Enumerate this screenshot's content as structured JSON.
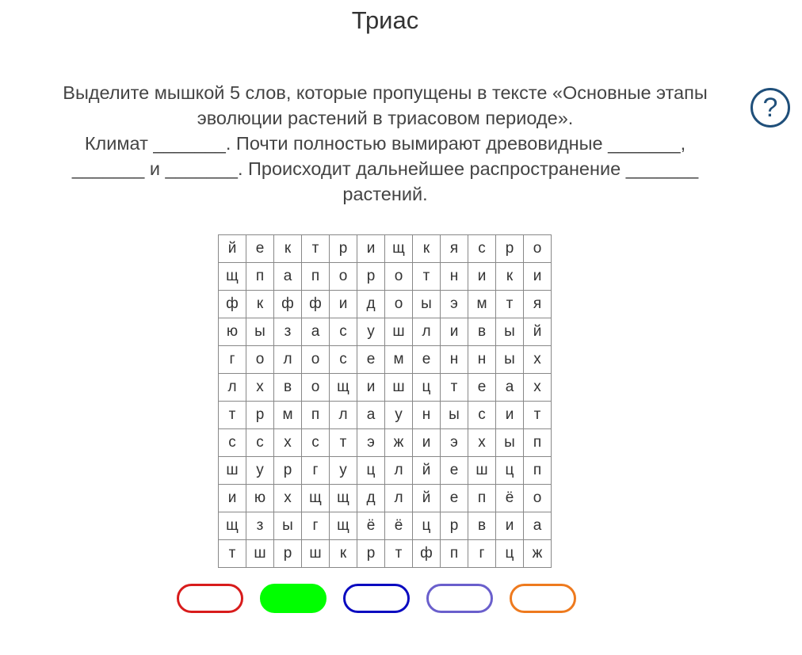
{
  "title": "Триас",
  "task": {
    "line1": "Выделите мышкой 5 слов, которые пропущены в тексте «Основные этапы эволюции растений в триасовом периоде».",
    "line2": "Климат _______. Почти полностью вымирают древовидные _______, _______ и _______. Происходит дальнейшее распространение _______ растений."
  },
  "help_icon": "question-circle-icon",
  "grid": [
    [
      "й",
      "е",
      "к",
      "т",
      "р",
      "и",
      "щ",
      "к",
      "я",
      "с",
      "р",
      "о"
    ],
    [
      "щ",
      "п",
      "а",
      "п",
      "о",
      "р",
      "о",
      "т",
      "н",
      "и",
      "к",
      "и"
    ],
    [
      "ф",
      "к",
      "ф",
      "ф",
      "и",
      "д",
      "о",
      "ы",
      "э",
      "м",
      "т",
      "я"
    ],
    [
      "ю",
      "ы",
      "з",
      "а",
      "с",
      "у",
      "ш",
      "л",
      "и",
      "в",
      "ы",
      "й"
    ],
    [
      "г",
      "о",
      "л",
      "о",
      "с",
      "е",
      "м",
      "е",
      "н",
      "н",
      "ы",
      "х"
    ],
    [
      "л",
      "х",
      "в",
      "о",
      "щ",
      "и",
      "ш",
      "ц",
      "т",
      "е",
      "а",
      "х"
    ],
    [
      "т",
      "р",
      "м",
      "п",
      "л",
      "а",
      "у",
      "н",
      "ы",
      "с",
      "и",
      "т"
    ],
    [
      "с",
      "с",
      "х",
      "с",
      "т",
      "э",
      "ж",
      "и",
      "э",
      "х",
      "ы",
      "п"
    ],
    [
      "ш",
      "у",
      "р",
      "г",
      "у",
      "ц",
      "л",
      "й",
      "е",
      "ш",
      "ц",
      "п"
    ],
    [
      "и",
      "ю",
      "х",
      "щ",
      "щ",
      "д",
      "л",
      "й",
      "е",
      "п",
      "ё",
      "о"
    ],
    [
      "щ",
      "з",
      "ы",
      "г",
      "щ",
      "ё",
      "ё",
      "ц",
      "р",
      "в",
      "и",
      "а"
    ],
    [
      "т",
      "ш",
      "р",
      "ш",
      "к",
      "р",
      "т",
      "ф",
      "п",
      "г",
      "ц",
      "ж"
    ]
  ],
  "color_pills": [
    {
      "color": "#d81c1c",
      "filled": false
    },
    {
      "color": "#00ff00",
      "filled": true
    },
    {
      "color": "#0a0ac0",
      "filled": false
    },
    {
      "color": "#6a5fcc",
      "filled": false
    },
    {
      "color": "#ee7a1e",
      "filled": false
    }
  ]
}
